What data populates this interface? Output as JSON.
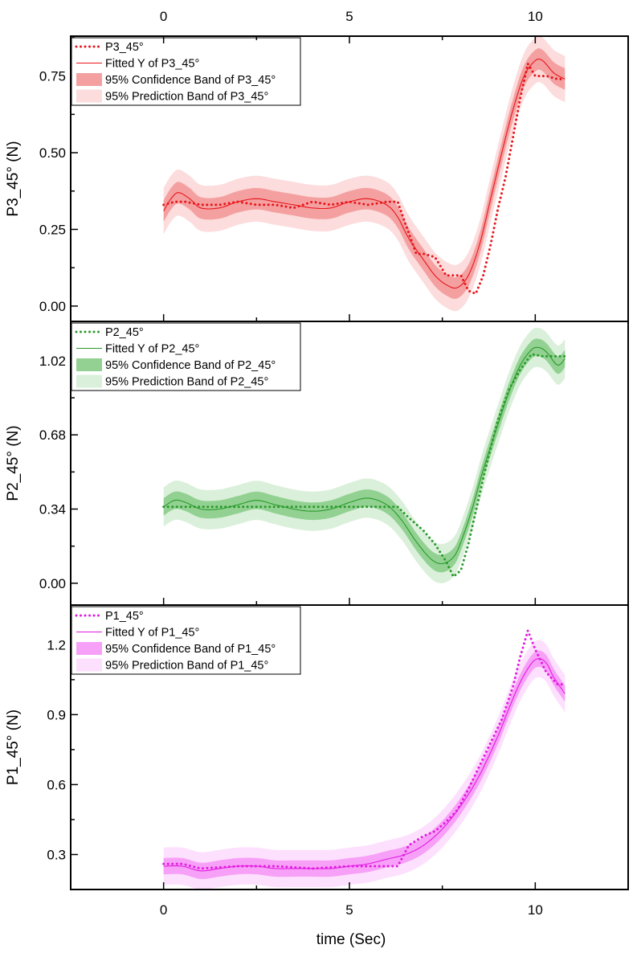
{
  "figure": {
    "xlabel": "time (Sec)"
  },
  "chart_data": [
    {
      "type": "line",
      "id": "p3",
      "ylabel": "P3_45° (N)",
      "xlim": [
        -2.5,
        12.5
      ],
      "ylim": [
        -0.05,
        0.88
      ],
      "xticks": [
        0,
        5,
        10
      ],
      "xtick_labels": [
        "0",
        "5",
        "10"
      ],
      "yticks": [
        0,
        0.25,
        0.5,
        0.75
      ],
      "ytick_labels": [
        "0.00",
        "0.25",
        "0.50",
        "0.75"
      ],
      "colors": {
        "main": "#e8151b",
        "conf": "#f4a0a0",
        "pred": "#fcdcdc"
      },
      "legend": [
        "P3_45°",
        "Fitted Y of P3_45°",
        "95% Confidence Band of P3_45°",
        "95% Prediction Band of P3_45°"
      ],
      "conf_halfwidth": 0.035,
      "pred_halfwidth": 0.075,
      "series": [
        {
          "name": "P3_45°",
          "style": "dotted",
          "x": [
            0,
            0.3,
            0.6,
            1.0,
            1.5,
            2.0,
            2.5,
            3.0,
            3.5,
            4.0,
            4.5,
            5.0,
            5.5,
            6.0,
            6.3,
            6.5,
            6.8,
            7.0,
            7.3,
            7.6,
            8.0,
            8.2,
            8.4,
            8.6,
            8.8,
            9.0,
            9.2,
            9.4,
            9.6,
            9.8,
            10.0,
            10.3,
            10.6,
            10.8
          ],
          "y": [
            0.33,
            0.34,
            0.34,
            0.33,
            0.33,
            0.34,
            0.33,
            0.33,
            0.32,
            0.34,
            0.33,
            0.34,
            0.33,
            0.34,
            0.34,
            0.27,
            0.17,
            0.17,
            0.16,
            0.1,
            0.1,
            0.05,
            0.04,
            0.1,
            0.2,
            0.32,
            0.42,
            0.55,
            0.68,
            0.79,
            0.75,
            0.75,
            0.74,
            0.74
          ]
        },
        {
          "name": "Fitted Y of P3_45°",
          "style": "solid",
          "x": [
            0,
            0.2,
            0.4,
            0.7,
            1.0,
            1.5,
            2.0,
            2.5,
            3.0,
            3.5,
            4.0,
            4.5,
            5.0,
            5.5,
            6.0,
            6.3,
            6.6,
            7.0,
            7.3,
            7.6,
            7.9,
            8.2,
            8.5,
            8.8,
            9.1,
            9.4,
            9.7,
            10.0,
            10.2,
            10.5,
            10.8
          ],
          "y": [
            0.31,
            0.35,
            0.37,
            0.35,
            0.32,
            0.32,
            0.34,
            0.35,
            0.34,
            0.33,
            0.32,
            0.32,
            0.34,
            0.35,
            0.33,
            0.29,
            0.22,
            0.15,
            0.1,
            0.07,
            0.06,
            0.1,
            0.2,
            0.35,
            0.5,
            0.64,
            0.75,
            0.8,
            0.8,
            0.76,
            0.74
          ]
        }
      ]
    },
    {
      "type": "line",
      "id": "p2",
      "ylabel": "P2_45° (N)",
      "xlim": [
        -2.5,
        12.5
      ],
      "ylim": [
        -0.1,
        1.2
      ],
      "xticks": [
        0,
        5,
        10
      ],
      "xtick_labels": [
        "0",
        "5",
        "10"
      ],
      "yticks": [
        0,
        0.34,
        0.68,
        1.02
      ],
      "ytick_labels": [
        "0.00",
        "0.34",
        "0.68",
        "1.02"
      ],
      "colors": {
        "main": "#2a9a2a",
        "conf": "#92d192",
        "pred": "#dbf0db"
      },
      "legend": [
        "P2_45°",
        "Fitted Y of P2_45°",
        "95% Confidence Band of P2_45°",
        "95% Prediction Band of P2_45°"
      ],
      "conf_halfwidth": 0.04,
      "pred_halfwidth": 0.09,
      "series": [
        {
          "name": "P2_45°",
          "style": "dotted",
          "x": [
            0,
            0.5,
            1.0,
            2.0,
            3.0,
            4.0,
            5.0,
            6.0,
            6.3,
            6.6,
            7.0,
            7.3,
            7.6,
            7.8,
            8.0,
            8.2,
            8.4,
            8.6,
            8.8,
            9.0,
            9.3,
            9.6,
            9.9,
            10.2,
            10.5,
            10.8
          ],
          "y": [
            0.35,
            0.35,
            0.35,
            0.35,
            0.35,
            0.35,
            0.35,
            0.35,
            0.35,
            0.3,
            0.24,
            0.18,
            0.1,
            0.03,
            0.06,
            0.18,
            0.33,
            0.48,
            0.62,
            0.75,
            0.89,
            0.98,
            1.05,
            1.04,
            1.04,
            1.04
          ]
        },
        {
          "name": "Fitted Y of P2_45°",
          "style": "solid",
          "x": [
            0,
            0.3,
            0.6,
            1.0,
            1.5,
            2.0,
            2.5,
            3.0,
            3.5,
            4.0,
            4.5,
            5.0,
            5.5,
            6.0,
            6.4,
            6.8,
            7.2,
            7.5,
            7.8,
            8.0,
            8.3,
            8.6,
            9.0,
            9.3,
            9.6,
            9.9,
            10.1,
            10.3,
            10.6,
            10.8
          ],
          "y": [
            0.35,
            0.38,
            0.37,
            0.34,
            0.34,
            0.36,
            0.38,
            0.36,
            0.34,
            0.33,
            0.34,
            0.37,
            0.39,
            0.36,
            0.29,
            0.19,
            0.11,
            0.09,
            0.12,
            0.19,
            0.34,
            0.52,
            0.73,
            0.88,
            1.0,
            1.07,
            1.08,
            1.06,
            1.0,
            1.03
          ]
        }
      ]
    },
    {
      "type": "line",
      "id": "p1",
      "ylabel": "P1_45° (N)",
      "xlim": [
        -2.5,
        12.5
      ],
      "ylim": [
        0.15,
        1.37
      ],
      "xticks": [
        0,
        5,
        10
      ],
      "xtick_labels": [
        "0",
        "5",
        "10"
      ],
      "yticks": [
        0.3,
        0.6,
        0.9,
        1.2
      ],
      "ytick_labels": [
        "0.3",
        "0.6",
        "0.9",
        "1.2"
      ],
      "colors": {
        "main": "#e21ae2",
        "conf": "#f7a0f7",
        "pred": "#fde0fd"
      },
      "legend": [
        "P1_45°",
        "Fitted Y of P1_45°",
        "95% Confidence Band of P1_45°",
        "95% Prediction Band of P1_45°"
      ],
      "conf_halfwidth": 0.035,
      "pred_halfwidth": 0.08,
      "series": [
        {
          "name": "P1_45°",
          "style": "dotted",
          "x": [
            0,
            0.5,
            1.0,
            2.0,
            3.0,
            4.0,
            5.0,
            6.0,
            6.3,
            6.6,
            7.0,
            7.3,
            7.6,
            7.9,
            8.2,
            8.5,
            8.8,
            9.1,
            9.4,
            9.6,
            9.8,
            10.0,
            10.3,
            10.6,
            10.8
          ],
          "y": [
            0.26,
            0.26,
            0.24,
            0.25,
            0.25,
            0.24,
            0.25,
            0.25,
            0.25,
            0.34,
            0.38,
            0.4,
            0.44,
            0.49,
            0.58,
            0.68,
            0.78,
            0.88,
            1.02,
            1.15,
            1.26,
            1.18,
            1.08,
            1.03,
            1.03
          ]
        },
        {
          "name": "Fitted Y of P1_45°",
          "style": "solid",
          "x": [
            0,
            0.5,
            1.0,
            1.5,
            2.0,
            2.5,
            3.0,
            3.5,
            4.0,
            4.5,
            5.0,
            5.5,
            6.0,
            6.5,
            7.0,
            7.5,
            8.0,
            8.5,
            9.0,
            9.3,
            9.6,
            9.9,
            10.1,
            10.3,
            10.5,
            10.8
          ],
          "y": [
            0.25,
            0.25,
            0.23,
            0.24,
            0.25,
            0.25,
            0.24,
            0.24,
            0.24,
            0.24,
            0.25,
            0.26,
            0.28,
            0.3,
            0.34,
            0.41,
            0.51,
            0.64,
            0.81,
            0.93,
            1.04,
            1.12,
            1.14,
            1.12,
            1.06,
            0.99
          ]
        }
      ]
    }
  ]
}
